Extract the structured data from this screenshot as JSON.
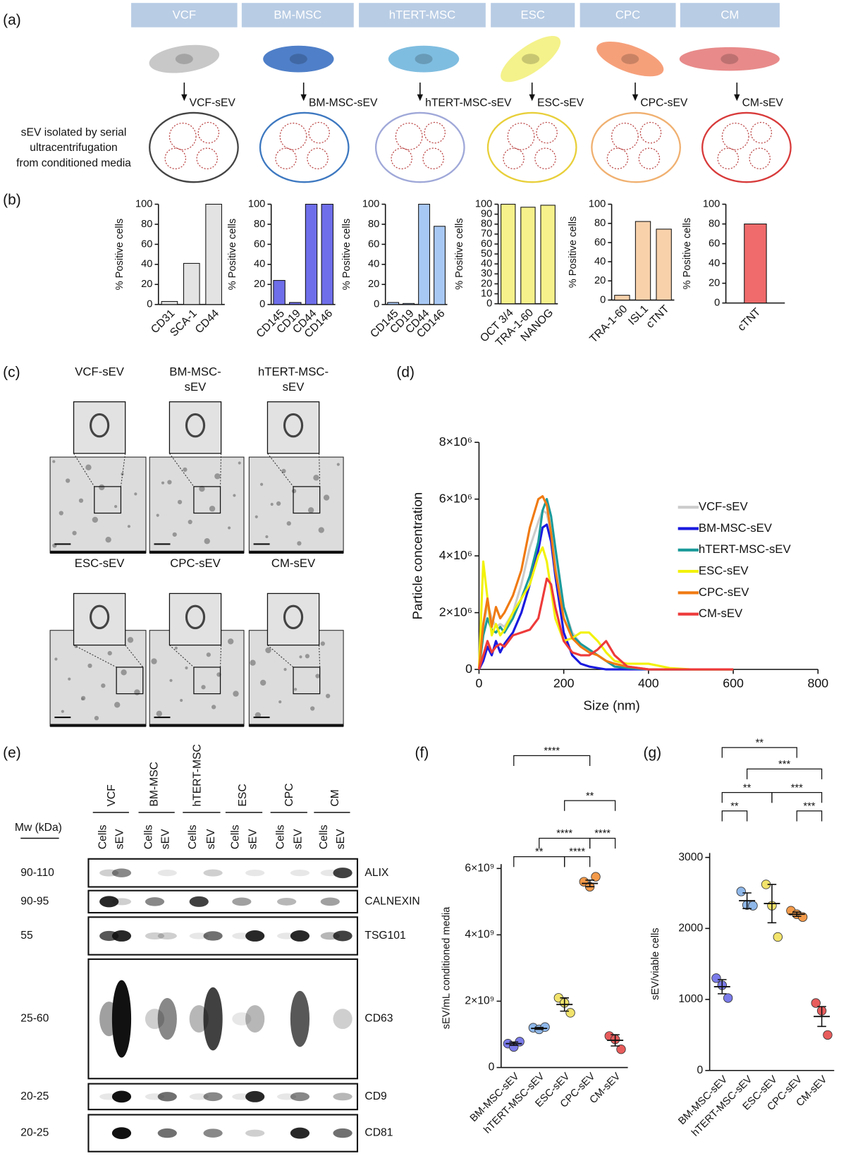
{
  "panel_labels": [
    "(a)",
    "(b)",
    "(c)",
    "(d)",
    "(e)",
    "(f)",
    "(g)"
  ],
  "cell_types": [
    "VCF",
    "BM-MSC",
    "hTERT-MSC",
    "ESC",
    "CPC",
    "CM"
  ],
  "sev_labels": [
    "VCF-sEV",
    "BM-MSC-sEV",
    "hTERT-MSC-sEV",
    "ESC-sEV",
    "CPC-sEV",
    "CM-sEV"
  ],
  "isolation_text": [
    "sEV isolated by serial",
    "ultracentrifugation",
    "from conditioned media"
  ],
  "tem_labels": [
    [
      "VCF-sEV"
    ],
    [
      "BM-MSC-",
      "sEV"
    ],
    [
      "hTERT-MSC-",
      "sEV"
    ],
    [
      "ESC-sEV"
    ],
    [
      "CPC-sEV"
    ],
    [
      "CM-sEV"
    ]
  ],
  "western_blot": {
    "lanes": [
      "VCF",
      "BM-MSC",
      "hTERT-MSC",
      "ESC",
      "CPC",
      "CM"
    ],
    "mw_header": "Mw (kDa)",
    "sample_labels": [
      "Cells",
      "sEV"
    ],
    "rows": [
      {
        "mw": "90-110",
        "protein": "ALIX"
      },
      {
        "mw": "90-95",
        "protein": "CALNEXIN"
      },
      {
        "mw": "55",
        "protein": "TSG101"
      },
      {
        "mw": "25-60",
        "protein": "CD63"
      },
      {
        "mw": "20-25",
        "protein": "CD9"
      },
      {
        "mw": "20-25",
        "protein": "CD81"
      }
    ]
  },
  "chart_data": [
    {
      "type": "bar",
      "y_label": "% Positive cells",
      "categories": [
        "CD31",
        "SCA-1",
        "CD44"
      ],
      "values": [
        3,
        41,
        100
      ],
      "color": "#e3e3e3",
      "ylim": [
        0,
        100
      ],
      "yticks": [
        0,
        20,
        40,
        60,
        80,
        100
      ]
    },
    {
      "type": "bar",
      "y_label": "% Positive cells",
      "categories": [
        "CD145",
        "CD19",
        "CD44",
        "CD146"
      ],
      "values": [
        24,
        2,
        100,
        100
      ],
      "color": "#6e6eea",
      "ylim": [
        0,
        100
      ],
      "yticks": [
        0,
        20,
        40,
        60,
        80,
        100
      ]
    },
    {
      "type": "bar",
      "y_label": "% Positive cells",
      "categories": [
        "CD145",
        "CD19",
        "CD44",
        "CD146"
      ],
      "values": [
        2,
        1,
        100,
        78
      ],
      "color": "#a8c8f4",
      "ylim": [
        0,
        100
      ],
      "yticks": [
        0,
        20,
        40,
        60,
        80,
        100
      ]
    },
    {
      "type": "bar",
      "y_label": "% Positive cells",
      "categories": [
        "OCT 3/4",
        "TRA-1-60",
        "NANOG"
      ],
      "values": [
        100,
        97,
        99
      ],
      "color": "#f6f18a",
      "ylim": [
        0,
        100
      ],
      "yticks": [
        0,
        10,
        20,
        30,
        40,
        50,
        60,
        70,
        80,
        90,
        100
      ]
    },
    {
      "type": "bar",
      "y_label": "% Positive cells",
      "categories": [
        "TRA-1-60",
        "ISL1",
        "cTNT"
      ],
      "values": [
        5,
        82,
        74
      ],
      "color": "#f8d1ab",
      "ylim": [
        0,
        100
      ],
      "yticks": [
        0,
        20,
        40,
        60,
        80,
        100
      ]
    },
    {
      "type": "bar",
      "y_label": "% Positive cells",
      "categories": [
        "cTNT"
      ],
      "values": [
        80
      ],
      "color": "#f06b6b",
      "ylim": [
        0,
        100
      ],
      "yticks": [
        0,
        20,
        40,
        60,
        80,
        100
      ]
    },
    {
      "type": "line",
      "x_label": "Size (nm)",
      "y_label": "Particle concentration",
      "legend": "right",
      "x": [
        0,
        10,
        20,
        30,
        40,
        50,
        60,
        80,
        100,
        120,
        140,
        150,
        160,
        170,
        180,
        200,
        220,
        240,
        260,
        280,
        300,
        320,
        350,
        400,
        450,
        500,
        600
      ],
      "xlim": [
        0,
        800
      ],
      "xticks": [
        0,
        200,
        400,
        600,
        800
      ],
      "ylim": [
        0,
        8000000
      ],
      "yticks": [
        0,
        {
          "value": 2000000,
          "label": "2×10⁶"
        },
        {
          "value": 4000000,
          "label": "4×10⁶"
        },
        {
          "value": 6000000,
          "label": "6×10⁶"
        },
        {
          "value": 8000000,
          "label": "8×10⁶"
        }
      ],
      "series": [
        {
          "name": "VCF-sEV",
          "color": "#cccccc",
          "values": [
            0,
            1500000,
            2300000,
            1800000,
            1500000,
            1600000,
            1500000,
            2000000,
            3000000,
            4300000,
            5200000,
            5600000,
            5500000,
            4800000,
            3800000,
            2200000,
            1300000,
            900000,
            700000,
            500000,
            300000,
            100000,
            50000,
            0,
            0,
            0,
            0
          ]
        },
        {
          "name": "BM-MSC-sEV",
          "color": "#1a1adf",
          "values": [
            0,
            300000,
            800000,
            500000,
            1000000,
            600000,
            900000,
            1300000,
            2000000,
            3000000,
            4200000,
            5000000,
            5100000,
            4500000,
            3300000,
            1300000,
            500000,
            200000,
            100000,
            50000,
            0,
            0,
            0,
            0,
            0,
            0,
            0
          ]
        },
        {
          "name": "hTERT-MSC-sEV",
          "color": "#1a9a9a",
          "values": [
            0,
            1200000,
            1800000,
            1400000,
            1300000,
            1500000,
            1300000,
            1800000,
            2500000,
            3300000,
            4500000,
            5600000,
            6000000,
            5400000,
            4300000,
            2200000,
            1200000,
            900000,
            700000,
            500000,
            300000,
            100000,
            50000,
            0,
            0,
            0,
            0
          ]
        },
        {
          "name": "ESC-sEV",
          "color": "#f2f20a",
          "values": [
            0,
            3800000,
            2500000,
            1200000,
            1600000,
            1200000,
            1400000,
            2000000,
            2500000,
            3000000,
            4000000,
            4300000,
            3800000,
            2800000,
            1800000,
            1000000,
            1100000,
            1300000,
            1300000,
            1000000,
            600000,
            300000,
            200000,
            200000,
            50000,
            0,
            0
          ]
        },
        {
          "name": "CPC-sEV",
          "color": "#f07a12",
          "values": [
            0,
            1600000,
            2500000,
            1500000,
            2200000,
            1800000,
            2000000,
            2600000,
            3500000,
            5000000,
            6000000,
            6100000,
            5800000,
            4800000,
            3500000,
            1800000,
            1100000,
            800000,
            600000,
            500000,
            300000,
            200000,
            100000,
            0,
            0,
            0,
            0
          ]
        },
        {
          "name": "CM-sEV",
          "color": "#ee3a3a",
          "values": [
            0,
            500000,
            1000000,
            600000,
            800000,
            900000,
            800000,
            1200000,
            1300000,
            1400000,
            1800000,
            2500000,
            3200000,
            3000000,
            2200000,
            1000000,
            600000,
            500000,
            500000,
            700000,
            1000000,
            500000,
            100000,
            0,
            0,
            0,
            0
          ]
        }
      ]
    },
    {
      "type": "dot",
      "y_label": "sEV/mL conditioned media",
      "categories": [
        "BM-MSC-sEV",
        "hTERT-MSC-sEV",
        "ESC-sEV",
        "CPC-sEV",
        "CM-sEV"
      ],
      "colors": [
        "#7b7bea",
        "#8fb8ea",
        "#f2e36c",
        "#f39a4a",
        "#e85c5c"
      ],
      "points": [
        [
          720000000,
          620000000,
          780000000
        ],
        [
          1200000000,
          1150000000,
          1220000000
        ],
        [
          2100000000,
          1950000000,
          1650000000
        ],
        [
          5600000000,
          5450000000,
          5750000000
        ],
        [
          950000000,
          850000000,
          550000000
        ]
      ],
      "means": [
        720000000,
        1180000000,
        1900000000,
        5550000000,
        820000000
      ],
      "errors": [
        50000000,
        30000000,
        200000000,
        100000000,
        170000000
      ],
      "ylim": [
        0,
        6000000000
      ],
      "yticks": [
        0,
        {
          "value": 2000000000,
          "label": "2×10⁹"
        },
        {
          "value": 4000000000,
          "label": "4×10⁹"
        },
        {
          "value": 6000000000,
          "label": "6×10⁹"
        }
      ],
      "brackets": [
        {
          "text": "****",
          "between": [
            0,
            3
          ]
        },
        {
          "text": "**",
          "between": [
            2,
            4
          ]
        },
        {
          "text": "****",
          "between": [
            1,
            3
          ]
        },
        {
          "text": "****",
          "between": [
            3,
            4
          ]
        },
        {
          "text": "**",
          "between": [
            0,
            2
          ]
        },
        {
          "text": "****",
          "between": [
            2,
            3
          ]
        }
      ]
    },
    {
      "type": "dot",
      "y_label": "sEV/viable cells",
      "categories": [
        "BM-MSC-sEV",
        "hTERT-MSC-sEV",
        "ESC-sEV",
        "CPC-sEV",
        "CM-sEV"
      ],
      "colors": [
        "#7b7bea",
        "#8fb8ea",
        "#f2e36c",
        "#f39a4a",
        "#e85c5c"
      ],
      "points": [
        [
          1300,
          1200,
          1020
        ],
        [
          2520,
          2330,
          2320
        ],
        [
          2620,
          2320,
          1880
        ],
        [
          2250,
          2200,
          2160
        ],
        [
          950,
          840,
          500
        ]
      ],
      "means": [
        1180,
        2390,
        2350,
        2200,
        760
      ],
      "errors": [
        100,
        110,
        270,
        30,
        140
      ],
      "ylim": [
        0,
        3000
      ],
      "yticks": [
        0,
        1000,
        2000,
        3000
      ],
      "brackets": [
        {
          "text": "**",
          "between": [
            0,
            3
          ]
        },
        {
          "text": "***",
          "between": [
            1,
            4
          ]
        },
        {
          "text": "**",
          "between": [
            0,
            2
          ]
        },
        {
          "text": "***",
          "between": [
            2,
            4
          ]
        },
        {
          "text": "**",
          "between": [
            0,
            1
          ]
        },
        {
          "text": "***",
          "between": [
            3,
            4
          ]
        }
      ]
    }
  ]
}
